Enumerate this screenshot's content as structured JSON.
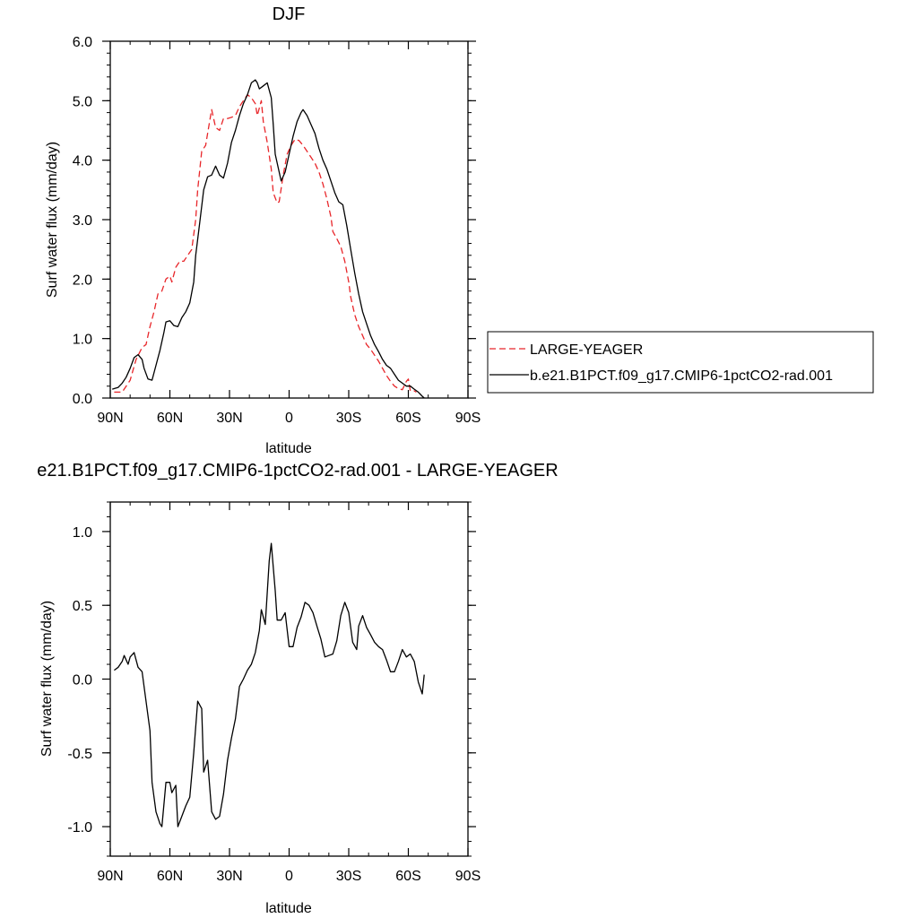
{
  "chart_data": [
    {
      "type": "line",
      "title": "DJF",
      "xlabel": "latitude",
      "ylabel": "Surf water flux (mm/day)",
      "xlim": [
        -90,
        90
      ],
      "ylim": [
        0,
        6
      ],
      "x_ticks": [
        {
          "value": -90,
          "label": "90N"
        },
        {
          "value": -60,
          "label": "60N"
        },
        {
          "value": -30,
          "label": "30N"
        },
        {
          "value": 0,
          "label": "0"
        },
        {
          "value": 30,
          "label": "30S"
        },
        {
          "value": 60,
          "label": "60S"
        },
        {
          "value": 90,
          "label": "90S"
        }
      ],
      "y_ticks": [
        {
          "value": 0,
          "label": "0.0"
        },
        {
          "value": 1,
          "label": "1.0"
        },
        {
          "value": 2,
          "label": "2.0"
        },
        {
          "value": 3,
          "label": "3.0"
        },
        {
          "value": 4,
          "label": "4.0"
        },
        {
          "value": 5,
          "label": "5.0"
        },
        {
          "value": 6,
          "label": "6.0"
        }
      ],
      "legend_position": "right",
      "series": [
        {
          "name": "LARGE-YEAGER",
          "color": "#e8262a",
          "dash": true,
          "points": [
            [
              -88,
              0.1
            ],
            [
              -84,
              0.1
            ],
            [
              -80,
              0.3
            ],
            [
              -77,
              0.65
            ],
            [
              -74,
              0.85
            ],
            [
              -72,
              0.9
            ],
            [
              -70,
              1.2
            ],
            [
              -68,
              1.45
            ],
            [
              -66,
              1.75
            ],
            [
              -64,
              1.8
            ],
            [
              -62,
              2.0
            ],
            [
              -60,
              2.05
            ],
            [
              -59,
              1.95
            ],
            [
              -57,
              2.2
            ],
            [
              -55,
              2.3
            ],
            [
              -53,
              2.3
            ],
            [
              -51,
              2.4
            ],
            [
              -49,
              2.5
            ],
            [
              -47,
              3.0
            ],
            [
              -46,
              3.5
            ],
            [
              -44,
              4.15
            ],
            [
              -42,
              4.25
            ],
            [
              -40,
              4.65
            ],
            [
              -39,
              4.85
            ],
            [
              -37,
              4.55
            ],
            [
              -35,
              4.5
            ],
            [
              -33,
              4.7
            ],
            [
              -31,
              4.7
            ],
            [
              -29,
              4.72
            ],
            [
              -27,
              4.75
            ],
            [
              -25,
              4.9
            ],
            [
              -23,
              5.0
            ],
            [
              -21,
              5.1
            ],
            [
              -19,
              5.05
            ],
            [
              -17,
              4.95
            ],
            [
              -16,
              4.75
            ],
            [
              -14,
              5.0
            ],
            [
              -13,
              4.65
            ],
            [
              -11,
              4.3
            ],
            [
              -9,
              3.85
            ],
            [
              -8,
              3.45
            ],
            [
              -6,
              3.28
            ],
            [
              -5,
              3.3
            ],
            [
              -3,
              3.75
            ],
            [
              -1,
              4.1
            ],
            [
              1,
              4.25
            ],
            [
              3,
              4.35
            ],
            [
              5,
              4.33
            ],
            [
              7,
              4.25
            ],
            [
              9,
              4.15
            ],
            [
              11,
              4.05
            ],
            [
              13,
              3.95
            ],
            [
              15,
              3.8
            ],
            [
              17,
              3.6
            ],
            [
              19,
              3.35
            ],
            [
              21,
              3.05
            ],
            [
              22,
              2.8
            ],
            [
              24,
              2.68
            ],
            [
              26,
              2.55
            ],
            [
              28,
              2.3
            ],
            [
              30,
              1.95
            ],
            [
              31,
              1.7
            ],
            [
              33,
              1.4
            ],
            [
              35,
              1.2
            ],
            [
              37,
              1.05
            ],
            [
              39,
              0.9
            ],
            [
              41,
              0.82
            ],
            [
              43,
              0.72
            ],
            [
              45,
              0.62
            ],
            [
              47,
              0.5
            ],
            [
              49,
              0.38
            ],
            [
              51,
              0.28
            ],
            [
              53,
              0.2
            ],
            [
              55,
              0.16
            ],
            [
              57,
              0.14
            ],
            [
              59,
              0.28
            ],
            [
              60,
              0.32
            ],
            [
              61,
              0.12
            ],
            [
              63,
              0.12
            ],
            [
              64,
              0.1
            ]
          ]
        },
        {
          "name": "b.e21.B1PCT.f09_g17.CMIP6-1pctCO2-rad.001",
          "color": "#000000",
          "dash": false,
          "points": [
            [
              -89,
              0.15
            ],
            [
              -86,
              0.18
            ],
            [
              -84,
              0.25
            ],
            [
              -82,
              0.35
            ],
            [
              -80,
              0.5
            ],
            [
              -78,
              0.68
            ],
            [
              -76,
              0.73
            ],
            [
              -74,
              0.65
            ],
            [
              -73,
              0.5
            ],
            [
              -71,
              0.32
            ],
            [
              -69,
              0.3
            ],
            [
              -67,
              0.55
            ],
            [
              -65,
              0.8
            ],
            [
              -63,
              1.1
            ],
            [
              -62,
              1.28
            ],
            [
              -60,
              1.3
            ],
            [
              -58,
              1.22
            ],
            [
              -56,
              1.2
            ],
            [
              -54,
              1.35
            ],
            [
              -52,
              1.45
            ],
            [
              -50,
              1.6
            ],
            [
              -48,
              1.95
            ],
            [
              -47,
              2.4
            ],
            [
              -45,
              2.95
            ],
            [
              -43,
              3.5
            ],
            [
              -41,
              3.72
            ],
            [
              -39,
              3.75
            ],
            [
              -37,
              3.9
            ],
            [
              -35,
              3.75
            ],
            [
              -33,
              3.7
            ],
            [
              -31,
              3.95
            ],
            [
              -29,
              4.3
            ],
            [
              -27,
              4.5
            ],
            [
              -25,
              4.75
            ],
            [
              -23,
              4.95
            ],
            [
              -21,
              5.1
            ],
            [
              -19,
              5.3
            ],
            [
              -17,
              5.35
            ],
            [
              -16,
              5.3
            ],
            [
              -15,
              5.2
            ],
            [
              -13,
              5.25
            ],
            [
              -11,
              5.3
            ],
            [
              -9,
              5.05
            ],
            [
              -8,
              4.6
            ],
            [
              -7,
              4.1
            ],
            [
              -5,
              3.8
            ],
            [
              -4,
              3.65
            ],
            [
              -2,
              3.8
            ],
            [
              0,
              4.1
            ],
            [
              2,
              4.4
            ],
            [
              4,
              4.65
            ],
            [
              6,
              4.8
            ],
            [
              7,
              4.85
            ],
            [
              9,
              4.75
            ],
            [
              11,
              4.6
            ],
            [
              13,
              4.45
            ],
            [
              15,
              4.2
            ],
            [
              17,
              4.0
            ],
            [
              19,
              3.85
            ],
            [
              21,
              3.65
            ],
            [
              23,
              3.45
            ],
            [
              25,
              3.3
            ],
            [
              27,
              3.25
            ],
            [
              29,
              2.9
            ],
            [
              31,
              2.5
            ],
            [
              33,
              2.1
            ],
            [
              35,
              1.75
            ],
            [
              37,
              1.45
            ],
            [
              39,
              1.25
            ],
            [
              41,
              1.05
            ],
            [
              43,
              0.9
            ],
            [
              45,
              0.78
            ],
            [
              47,
              0.65
            ],
            [
              49,
              0.55
            ],
            [
              51,
              0.5
            ],
            [
              53,
              0.4
            ],
            [
              55,
              0.3
            ],
            [
              57,
              0.25
            ],
            [
              59,
              0.2
            ],
            [
              61,
              0.2
            ],
            [
              63,
              0.15
            ],
            [
              65,
              0.1
            ],
            [
              67,
              0.03
            ],
            [
              68,
              0.0
            ]
          ]
        }
      ]
    },
    {
      "type": "line",
      "title": "e21.B1PCT.f09_g17.CMIP6-1pctCO2-rad.001 - LARGE-YEAGER",
      "xlabel": "latitude",
      "ylabel": "Surf water flux (mm/day)",
      "xlim": [
        -90,
        90
      ],
      "ylim": [
        -1.2,
        1.2
      ],
      "x_ticks": [
        {
          "value": -90,
          "label": "90N"
        },
        {
          "value": -60,
          "label": "60N"
        },
        {
          "value": -30,
          "label": "30N"
        },
        {
          "value": 0,
          "label": "0"
        },
        {
          "value": 30,
          "label": "30S"
        },
        {
          "value": 60,
          "label": "60S"
        },
        {
          "value": 90,
          "label": "90S"
        }
      ],
      "y_ticks": [
        {
          "value": -1,
          "label": "-1.0"
        },
        {
          "value": -0.5,
          "label": "-0.5"
        },
        {
          "value": 0,
          "label": "0.0"
        },
        {
          "value": 0.5,
          "label": "0.5"
        },
        {
          "value": 1,
          "label": "1.0"
        }
      ],
      "series": [
        {
          "color": "#000000",
          "dash": false,
          "points": [
            [
              -88,
              0.06
            ],
            [
              -86,
              0.08
            ],
            [
              -84,
              0.12
            ],
            [
              -83,
              0.16
            ],
            [
              -81,
              0.1
            ],
            [
              -80,
              0.15
            ],
            [
              -78,
              0.18
            ],
            [
              -76,
              0.08
            ],
            [
              -74,
              0.05
            ],
            [
              -72,
              -0.15
            ],
            [
              -70,
              -0.35
            ],
            [
              -69,
              -0.7
            ],
            [
              -67,
              -0.9
            ],
            [
              -65,
              -0.98
            ],
            [
              -64,
              -1.0
            ],
            [
              -62,
              -0.7
            ],
            [
              -60,
              -0.7
            ],
            [
              -59,
              -0.77
            ],
            [
              -57,
              -0.72
            ],
            [
              -56,
              -1.0
            ],
            [
              -54,
              -0.93
            ],
            [
              -52,
              -0.86
            ],
            [
              -50,
              -0.8
            ],
            [
              -48,
              -0.5
            ],
            [
              -46,
              -0.15
            ],
            [
              -44,
              -0.2
            ],
            [
              -43,
              -0.63
            ],
            [
              -41,
              -0.55
            ],
            [
              -39,
              -0.9
            ],
            [
              -37,
              -0.95
            ],
            [
              -35,
              -0.93
            ],
            [
              -33,
              -0.78
            ],
            [
              -31,
              -0.55
            ],
            [
              -29,
              -0.4
            ],
            [
              -27,
              -0.27
            ],
            [
              -25,
              -0.05
            ],
            [
              -23,
              0.0
            ],
            [
              -21,
              0.06
            ],
            [
              -19,
              0.1
            ],
            [
              -17,
              0.18
            ],
            [
              -15,
              0.33
            ],
            [
              -14,
              0.47
            ],
            [
              -12,
              0.37
            ],
            [
              -10,
              0.8
            ],
            [
              -9,
              0.92
            ],
            [
              -7,
              0.6
            ],
            [
              -6,
              0.4
            ],
            [
              -4,
              0.4
            ],
            [
              -2,
              0.45
            ],
            [
              0,
              0.22
            ],
            [
              2,
              0.22
            ],
            [
              4,
              0.35
            ],
            [
              6,
              0.42
            ],
            [
              8,
              0.52
            ],
            [
              10,
              0.5
            ],
            [
              12,
              0.45
            ],
            [
              14,
              0.36
            ],
            [
              16,
              0.27
            ],
            [
              18,
              0.15
            ],
            [
              20,
              0.16
            ],
            [
              22,
              0.17
            ],
            [
              24,
              0.26
            ],
            [
              26,
              0.43
            ],
            [
              28,
              0.52
            ],
            [
              30,
              0.45
            ],
            [
              32,
              0.25
            ],
            [
              34,
              0.2
            ],
            [
              35,
              0.36
            ],
            [
              37,
              0.43
            ],
            [
              39,
              0.35
            ],
            [
              41,
              0.3
            ],
            [
              43,
              0.25
            ],
            [
              45,
              0.22
            ],
            [
              47,
              0.2
            ],
            [
              49,
              0.13
            ],
            [
              51,
              0.05
            ],
            [
              53,
              0.05
            ],
            [
              55,
              0.12
            ],
            [
              57,
              0.2
            ],
            [
              59,
              0.15
            ],
            [
              61,
              0.17
            ],
            [
              63,
              0.12
            ],
            [
              65,
              -0.02
            ],
            [
              67,
              -0.1
            ],
            [
              68,
              0.03
            ]
          ]
        }
      ]
    }
  ]
}
